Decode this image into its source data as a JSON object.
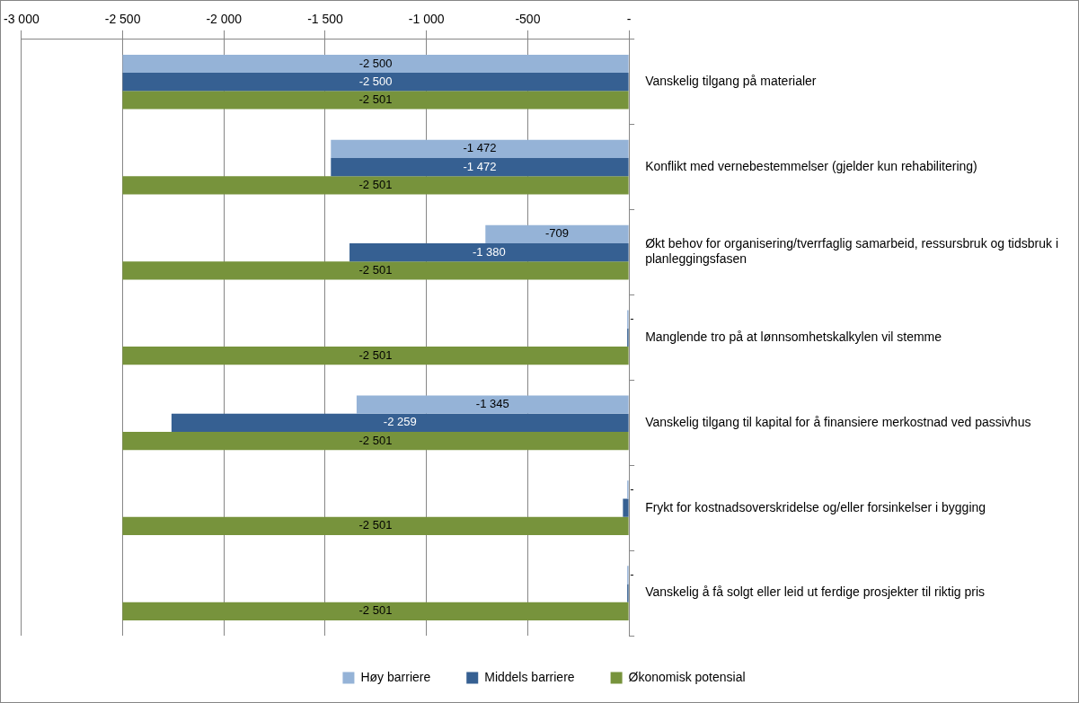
{
  "chart_data": {
    "type": "bar",
    "orientation": "horizontal",
    "categories": [
      "Vanskelig tilgang på materialer",
      "Konflikt med vernebestemmelser (gjelder kun rehabilitering)",
      "Økt behov for organisering/tverrfaglig samarbeid, ressursbruk og tidsbruk i planleggingsfasen",
      "Manglende tro på at lønnsomhetskalkylen vil stemme",
      "Vanskelig tilgang til kapital for å finansiere merkostnad ved passivhus",
      "Frykt for kostnadsoverskridelse og/eller forsinkelser i bygging",
      "Vanskelig å få solgt eller leid ut ferdige prosjekter til riktig pris"
    ],
    "series": [
      {
        "name": "Høy barriere",
        "color": "#95b3d7",
        "values": [
          -2500,
          -1472,
          -709,
          0,
          -1345,
          0,
          0
        ],
        "value_labels": [
          "-2 500",
          "-1 472",
          "-709",
          "-",
          "-1 345",
          "-",
          "-"
        ]
      },
      {
        "name": "Middels barriere",
        "color": "#366092",
        "values": [
          -2500,
          -1472,
          -1380,
          0,
          -2259,
          -30,
          0
        ],
        "value_labels": [
          "-2 500",
          "-1 472",
          "-1 380",
          null,
          "-2 259",
          null,
          null
        ]
      },
      {
        "name": "Økonomisk potensial",
        "color": "#77933c",
        "values": [
          -2501,
          -2501,
          -2501,
          -2501,
          -2501,
          -2501,
          -2501
        ],
        "value_labels": [
          "-2 501",
          "-2 501",
          "-2 501",
          "-2 501",
          "-2 501",
          "-2 501",
          "-2 501"
        ]
      }
    ],
    "xlim": [
      -3000,
      0
    ],
    "xticks": [
      {
        "value": -3000,
        "label": "-3 000"
      },
      {
        "value": -2500,
        "label": "-2 500"
      },
      {
        "value": -2000,
        "label": "-2 000"
      },
      {
        "value": -1500,
        "label": "-1 500"
      },
      {
        "value": -1000,
        "label": "-1 000"
      },
      {
        "value": -500,
        "label": "-500"
      },
      {
        "value": 0,
        "label": "-"
      }
    ],
    "grid": "x",
    "legend": "bottom"
  }
}
